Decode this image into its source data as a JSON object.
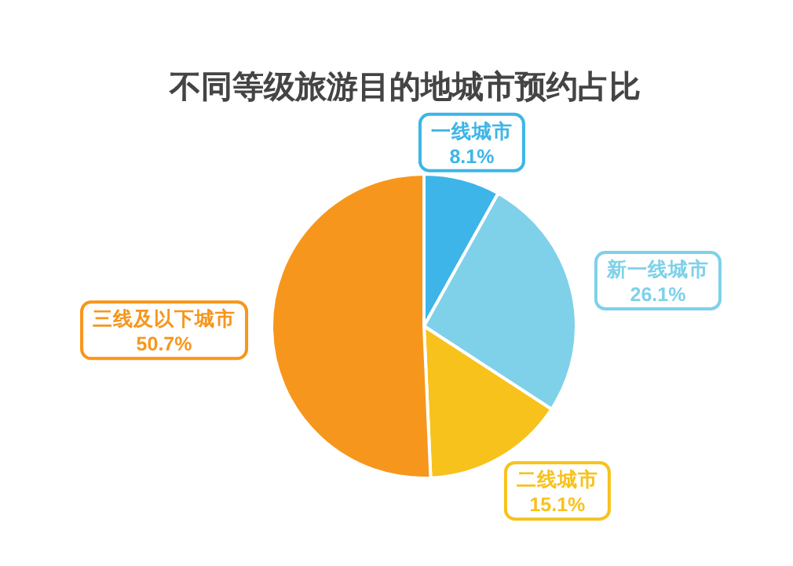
{
  "chart_data": {
    "type": "pie",
    "title": "不同等级旅游目的地城市预约占比",
    "categories": [
      "一线城市",
      "新一线城市",
      "二线城市",
      "三线及以下城市"
    ],
    "values": [
      8.1,
      26.1,
      15.1,
      50.7
    ],
    "value_labels": [
      "8.1%",
      "26.1%",
      "15.1%",
      "50.7%"
    ],
    "colors": [
      "#3db5e8",
      "#7ed1e9",
      "#f8c21c",
      "#f7961c"
    ]
  }
}
